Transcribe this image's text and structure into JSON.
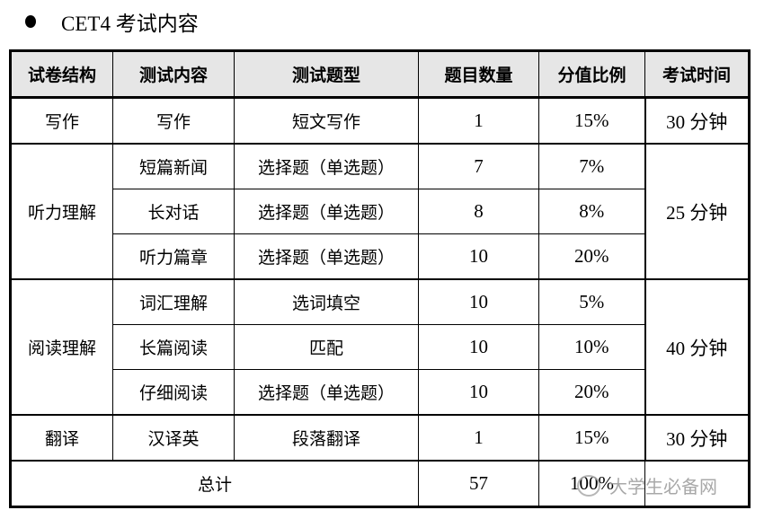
{
  "heading": "CET4 考试内容",
  "table": {
    "headers": [
      "试卷结构",
      "测试内容",
      "测试题型",
      "题目数量",
      "分值比例",
      "考试时间"
    ],
    "sections": [
      {
        "structure": "写作",
        "time": "30 分钟",
        "rows": [
          {
            "content": "写作",
            "type": "短文写作",
            "count": "1",
            "ratio": "15%"
          }
        ]
      },
      {
        "structure": "听力理解",
        "time": "25 分钟",
        "rows": [
          {
            "content": "短篇新闻",
            "type": "选择题（单选题）",
            "count": "7",
            "ratio": "7%"
          },
          {
            "content": "长对话",
            "type": "选择题（单选题）",
            "count": "8",
            "ratio": "8%"
          },
          {
            "content": "听力篇章",
            "type": "选择题（单选题）",
            "count": "10",
            "ratio": "20%"
          }
        ]
      },
      {
        "structure": "阅读理解",
        "time": "40 分钟",
        "rows": [
          {
            "content": "词汇理解",
            "type": "选词填空",
            "count": "10",
            "ratio": "5%"
          },
          {
            "content": "长篇阅读",
            "type": "匹配",
            "count": "10",
            "ratio": "10%"
          },
          {
            "content": "仔细阅读",
            "type": "选择题（单选题）",
            "count": "10",
            "ratio": "20%"
          }
        ]
      },
      {
        "structure": "翻译",
        "time": "30 分钟",
        "rows": [
          {
            "content": "汉译英",
            "type": "段落翻译",
            "count": "1",
            "ratio": "15%"
          }
        ]
      }
    ],
    "total": {
      "label": "总计",
      "count": "57",
      "ratio": "100%",
      "time": ""
    }
  },
  "watermark": "大学生必备网"
}
